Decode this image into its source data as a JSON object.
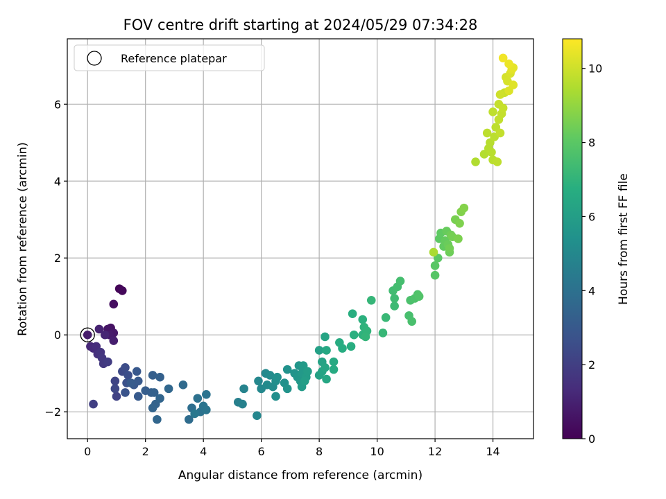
{
  "chart_data": {
    "type": "scatter",
    "title": "FOV centre drift starting at 2024/05/29 07:34:28",
    "xlabel": "Angular distance from reference (arcmin)",
    "ylabel": "Rotation from reference (arcmin)",
    "xlim": [
      -0.7,
      15.4
    ],
    "ylim": [
      -2.7,
      7.7
    ],
    "xticks": [
      0,
      2,
      4,
      6,
      8,
      10,
      12,
      14
    ],
    "yticks": [
      -2,
      0,
      2,
      4,
      6
    ],
    "xtick_labels": [
      "0",
      "2",
      "4",
      "6",
      "8",
      "10",
      "12",
      "14"
    ],
    "ytick_labels": [
      "−2",
      "0",
      "2",
      "4",
      "6"
    ],
    "grid": true,
    "colormap": "viridis",
    "colorbar": {
      "label": "Hours from first FF file",
      "range": [
        0,
        10.8
      ],
      "ticks": [
        0,
        2,
        4,
        6,
        8,
        10
      ],
      "tick_labels": [
        "0",
        "2",
        "4",
        "6",
        "8",
        "10"
      ]
    },
    "legend": {
      "position": "top-left",
      "entries": [
        {
          "label": "Reference platepar",
          "marker": "open-circle"
        }
      ]
    },
    "reference_point": {
      "x": 0,
      "y": 0
    },
    "series": [
      {
        "points": [
          {
            "x": 1.1,
            "y": 1.2,
            "c": 0.1
          },
          {
            "x": 1.2,
            "y": 1.15,
            "c": 0.2
          },
          {
            "x": 0.9,
            "y": 0.8,
            "c": 0.4
          },
          {
            "x": 0.8,
            "y": 0.18,
            "c": 0.5
          },
          {
            "x": 0.7,
            "y": 0.15,
            "c": 0.6
          },
          {
            "x": 0.9,
            "y": 0.05,
            "c": 0.7
          },
          {
            "x": 0.75,
            "y": 0.0,
            "c": 0.8
          },
          {
            "x": 0.9,
            "y": -0.15,
            "c": 0.9
          },
          {
            "x": 0.4,
            "y": 0.15,
            "c": 1.0
          },
          {
            "x": 0.6,
            "y": 0.0,
            "c": 1.1
          },
          {
            "x": 0.1,
            "y": -0.3,
            "c": 1.2
          },
          {
            "x": 0.2,
            "y": -0.35,
            "c": 1.3
          },
          {
            "x": 0.3,
            "y": -0.3,
            "c": 1.4
          },
          {
            "x": 0.35,
            "y": -0.5,
            "c": 1.5
          },
          {
            "x": 0.45,
            "y": -0.45,
            "c": 1.6
          },
          {
            "x": 0.5,
            "y": -0.6,
            "c": 1.7
          },
          {
            "x": 0.55,
            "y": -0.75,
            "c": 1.8
          },
          {
            "x": 0.7,
            "y": -0.7,
            "c": 1.9
          },
          {
            "x": 0.2,
            "y": -1.8,
            "c": 2.0
          },
          {
            "x": 1.0,
            "y": -1.6,
            "c": 2.1
          },
          {
            "x": 0.95,
            "y": -1.2,
            "c": 2.2
          },
          {
            "x": 0.95,
            "y": -1.4,
            "c": 2.3
          },
          {
            "x": 1.2,
            "y": -0.95,
            "c": 2.4
          },
          {
            "x": 1.3,
            "y": -0.85,
            "c": 2.5
          },
          {
            "x": 1.4,
            "y": -1.05,
            "c": 2.6
          },
          {
            "x": 1.35,
            "y": -1.25,
            "c": 2.7
          },
          {
            "x": 1.3,
            "y": -1.5,
            "c": 2.8
          },
          {
            "x": 1.6,
            "y": -1.3,
            "c": 2.9
          },
          {
            "x": 1.7,
            "y": -0.95,
            "c": 2.95
          },
          {
            "x": 1.75,
            "y": -1.2,
            "c": 3.0
          },
          {
            "x": 1.75,
            "y": -1.6,
            "c": 3.05
          },
          {
            "x": 1.5,
            "y": -1.25,
            "c": 3.1
          },
          {
            "x": 2.0,
            "y": -1.45,
            "c": 3.15
          },
          {
            "x": 2.2,
            "y": -1.5,
            "c": 3.2
          },
          {
            "x": 2.25,
            "y": -1.05,
            "c": 3.25
          },
          {
            "x": 2.5,
            "y": -1.1,
            "c": 3.3
          },
          {
            "x": 2.3,
            "y": -1.5,
            "c": 3.35
          },
          {
            "x": 2.35,
            "y": -1.8,
            "c": 3.4
          },
          {
            "x": 2.25,
            "y": -1.9,
            "c": 3.45
          },
          {
            "x": 2.5,
            "y": -1.65,
            "c": 3.5
          },
          {
            "x": 2.4,
            "y": -2.2,
            "c": 3.55
          },
          {
            "x": 2.8,
            "y": -1.4,
            "c": 3.6
          },
          {
            "x": 3.3,
            "y": -1.3,
            "c": 3.7
          },
          {
            "x": 3.5,
            "y": -2.2,
            "c": 3.8
          },
          {
            "x": 3.6,
            "y": -1.9,
            "c": 3.9
          },
          {
            "x": 3.8,
            "y": -1.65,
            "c": 4.0
          },
          {
            "x": 3.9,
            "y": -2.0,
            "c": 4.05
          },
          {
            "x": 4.1,
            "y": -1.55,
            "c": 4.1
          },
          {
            "x": 4.0,
            "y": -1.85,
            "c": 4.15
          },
          {
            "x": 4.1,
            "y": -1.95,
            "c": 4.2
          },
          {
            "x": 3.7,
            "y": -2.05,
            "c": 4.25
          },
          {
            "x": 5.2,
            "y": -1.75,
            "c": 4.6
          },
          {
            "x": 5.35,
            "y": -1.8,
            "c": 4.7
          },
          {
            "x": 5.4,
            "y": -1.4,
            "c": 4.8
          },
          {
            "x": 5.85,
            "y": -2.1,
            "c": 4.9
          },
          {
            "x": 5.9,
            "y": -1.2,
            "c": 4.95
          },
          {
            "x": 6.0,
            "y": -1.4,
            "c": 5.0
          },
          {
            "x": 6.15,
            "y": -1.0,
            "c": 5.05
          },
          {
            "x": 6.2,
            "y": -1.3,
            "c": 5.1
          },
          {
            "x": 6.3,
            "y": -1.05,
            "c": 5.15
          },
          {
            "x": 6.4,
            "y": -1.35,
            "c": 5.2
          },
          {
            "x": 6.5,
            "y": -1.6,
            "c": 5.25
          },
          {
            "x": 6.5,
            "y": -1.2,
            "c": 5.3
          },
          {
            "x": 6.55,
            "y": -1.1,
            "c": 5.35
          },
          {
            "x": 6.8,
            "y": -1.25,
            "c": 5.4
          },
          {
            "x": 6.9,
            "y": -0.9,
            "c": 5.45
          },
          {
            "x": 6.9,
            "y": -1.4,
            "c": 5.5
          },
          {
            "x": 7.15,
            "y": -1.0,
            "c": 5.55
          },
          {
            "x": 7.3,
            "y": -0.8,
            "c": 5.6
          },
          {
            "x": 7.25,
            "y": -1.1,
            "c": 5.65
          },
          {
            "x": 7.35,
            "y": -1.2,
            "c": 5.7
          },
          {
            "x": 7.4,
            "y": -1.0,
            "c": 5.75
          },
          {
            "x": 7.45,
            "y": -0.8,
            "c": 5.8
          },
          {
            "x": 7.4,
            "y": -1.35,
            "c": 5.85
          },
          {
            "x": 7.55,
            "y": -1.1,
            "c": 5.9
          },
          {
            "x": 7.6,
            "y": -0.95,
            "c": 5.95
          },
          {
            "x": 7.5,
            "y": -1.2,
            "c": 6.0
          },
          {
            "x": 8.0,
            "y": -0.4,
            "c": 6.1
          },
          {
            "x": 8.0,
            "y": -1.05,
            "c": 6.15
          },
          {
            "x": 8.1,
            "y": -0.7,
            "c": 6.2
          },
          {
            "x": 8.1,
            "y": -0.95,
            "c": 6.25
          },
          {
            "x": 8.2,
            "y": -0.05,
            "c": 6.3
          },
          {
            "x": 8.2,
            "y": -0.85,
            "c": 6.35
          },
          {
            "x": 8.25,
            "y": -1.15,
            "c": 6.4
          },
          {
            "x": 8.25,
            "y": -0.4,
            "c": 6.45
          },
          {
            "x": 8.5,
            "y": -0.7,
            "c": 6.5
          },
          {
            "x": 8.5,
            "y": -0.9,
            "c": 6.55
          },
          {
            "x": 8.7,
            "y": -0.2,
            "c": 6.6
          },
          {
            "x": 8.8,
            "y": -0.35,
            "c": 6.65
          },
          {
            "x": 9.1,
            "y": -0.3,
            "c": 6.7
          },
          {
            "x": 9.15,
            "y": 0.55,
            "c": 6.75
          },
          {
            "x": 9.2,
            "y": 0.0,
            "c": 6.8
          },
          {
            "x": 9.5,
            "y": 0.4,
            "c": 6.85
          },
          {
            "x": 9.5,
            "y": 0.0,
            "c": 6.9
          },
          {
            "x": 9.55,
            "y": 0.2,
            "c": 6.95
          },
          {
            "x": 9.65,
            "y": 0.1,
            "c": 7.0
          },
          {
            "x": 9.6,
            "y": -0.05,
            "c": 7.05
          },
          {
            "x": 9.8,
            "y": 0.9,
            "c": 7.1
          },
          {
            "x": 10.2,
            "y": 0.05,
            "c": 7.15
          },
          {
            "x": 10.3,
            "y": 0.45,
            "c": 7.2
          },
          {
            "x": 10.6,
            "y": 0.75,
            "c": 7.3
          },
          {
            "x": 10.6,
            "y": 0.95,
            "c": 7.35
          },
          {
            "x": 10.55,
            "y": 1.15,
            "c": 7.4
          },
          {
            "x": 10.7,
            "y": 1.25,
            "c": 7.45
          },
          {
            "x": 10.8,
            "y": 1.4,
            "c": 7.5
          },
          {
            "x": 11.1,
            "y": 0.5,
            "c": 7.55
          },
          {
            "x": 11.2,
            "y": 0.35,
            "c": 7.6
          },
          {
            "x": 11.15,
            "y": 0.9,
            "c": 7.65
          },
          {
            "x": 11.3,
            "y": 0.95,
            "c": 7.7
          },
          {
            "x": 11.4,
            "y": 1.05,
            "c": 7.75
          },
          {
            "x": 11.45,
            "y": 1.0,
            "c": 7.8
          },
          {
            "x": 12.0,
            "y": 1.55,
            "c": 7.9
          },
          {
            "x": 12.0,
            "y": 1.8,
            "c": 7.95
          },
          {
            "x": 12.1,
            "y": 2.0,
            "c": 8.0
          },
          {
            "x": 12.15,
            "y": 2.5,
            "c": 8.05
          },
          {
            "x": 12.2,
            "y": 2.65,
            "c": 8.1
          },
          {
            "x": 12.3,
            "y": 2.3,
            "c": 8.15
          },
          {
            "x": 12.35,
            "y": 2.45,
            "c": 8.2
          },
          {
            "x": 12.4,
            "y": 2.7,
            "c": 8.25
          },
          {
            "x": 12.45,
            "y": 2.35,
            "c": 8.3
          },
          {
            "x": 12.5,
            "y": 2.15,
            "c": 8.35
          },
          {
            "x": 12.55,
            "y": 2.6,
            "c": 8.4
          },
          {
            "x": 12.5,
            "y": 2.25,
            "c": 8.45
          },
          {
            "x": 12.6,
            "y": 2.55,
            "c": 8.5
          },
          {
            "x": 12.7,
            "y": 3.0,
            "c": 8.55
          },
          {
            "x": 12.8,
            "y": 2.5,
            "c": 8.6
          },
          {
            "x": 12.85,
            "y": 2.9,
            "c": 8.65
          },
          {
            "x": 12.9,
            "y": 3.2,
            "c": 8.7
          },
          {
            "x": 13.0,
            "y": 3.3,
            "c": 8.75
          },
          {
            "x": 11.95,
            "y": 2.15,
            "c": 9.4
          },
          {
            "x": 13.4,
            "y": 4.5,
            "c": 9.5
          },
          {
            "x": 13.7,
            "y": 4.7,
            "c": 9.55
          },
          {
            "x": 13.85,
            "y": 4.85,
            "c": 9.6
          },
          {
            "x": 13.9,
            "y": 5.0,
            "c": 9.62
          },
          {
            "x": 13.95,
            "y": 4.75,
            "c": 9.64
          },
          {
            "x": 14.0,
            "y": 4.55,
            "c": 9.66
          },
          {
            "x": 14.05,
            "y": 5.15,
            "c": 9.68
          },
          {
            "x": 13.8,
            "y": 5.25,
            "c": 9.7
          },
          {
            "x": 14.1,
            "y": 5.4,
            "c": 9.72
          },
          {
            "x": 14.15,
            "y": 4.5,
            "c": 9.74
          },
          {
            "x": 14.0,
            "y": 5.8,
            "c": 9.76
          },
          {
            "x": 14.2,
            "y": 5.6,
            "c": 9.8
          },
          {
            "x": 14.25,
            "y": 5.25,
            "c": 9.82
          },
          {
            "x": 14.3,
            "y": 5.75,
            "c": 9.84
          },
          {
            "x": 14.2,
            "y": 6.0,
            "c": 9.86
          },
          {
            "x": 14.35,
            "y": 5.9,
            "c": 9.88
          },
          {
            "x": 14.4,
            "y": 6.3,
            "c": 9.9
          },
          {
            "x": 14.25,
            "y": 6.25,
            "c": 10.0
          },
          {
            "x": 14.45,
            "y": 6.7,
            "c": 10.1
          },
          {
            "x": 14.5,
            "y": 6.6,
            "c": 10.15
          },
          {
            "x": 14.6,
            "y": 6.8,
            "c": 10.2
          },
          {
            "x": 14.55,
            "y": 6.35,
            "c": 10.25
          },
          {
            "x": 14.7,
            "y": 6.5,
            "c": 10.3
          },
          {
            "x": 14.65,
            "y": 6.9,
            "c": 10.35
          },
          {
            "x": 14.7,
            "y": 6.95,
            "c": 10.4
          },
          {
            "x": 14.55,
            "y": 7.05,
            "c": 10.5
          },
          {
            "x": 14.35,
            "y": 7.2,
            "c": 10.6
          }
        ]
      }
    ]
  }
}
